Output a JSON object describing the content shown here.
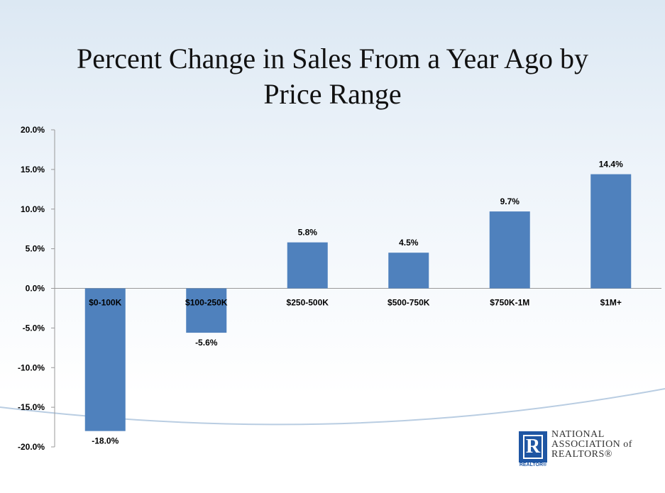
{
  "title_line1": "Percent Change in Sales From a Year Ago by",
  "title_line2": "Price Range",
  "logo": {
    "mark_letter": "R",
    "mark_caption": "REALTOR®",
    "line1": "NATIONAL",
    "line2": "ASSOCIATION of",
    "line3": "REALTORS®"
  },
  "colors": {
    "bar": "#4f81bd",
    "axis": "#999999",
    "text": "#000000"
  },
  "chart_data": {
    "type": "bar",
    "title": "Percent Change in Sales From a Year Ago by Price Range",
    "categories": [
      "$0-100K",
      "$100-250K",
      "$250-500K",
      "$500-750K",
      "$750K-1M",
      "$1M+"
    ],
    "values": [
      -18.0,
      -5.6,
      5.8,
      4.5,
      9.7,
      14.4
    ],
    "data_labels": [
      "-18.0%",
      "-5.6%",
      "5.8%",
      "4.5%",
      "9.7%",
      "14.4%"
    ],
    "ylim": [
      -20,
      20
    ],
    "yticks": [
      20,
      15,
      10,
      5,
      0,
      -5,
      -10,
      -15,
      -20
    ],
    "ytick_labels": [
      "20.0%",
      "15.0%",
      "10.0%",
      "5.0%",
      "0.0%",
      "-5.0%",
      "-10.0%",
      "-15.0%",
      "-20.0%"
    ],
    "xlabel": "",
    "ylabel": "",
    "grid": false,
    "legend": "none"
  }
}
